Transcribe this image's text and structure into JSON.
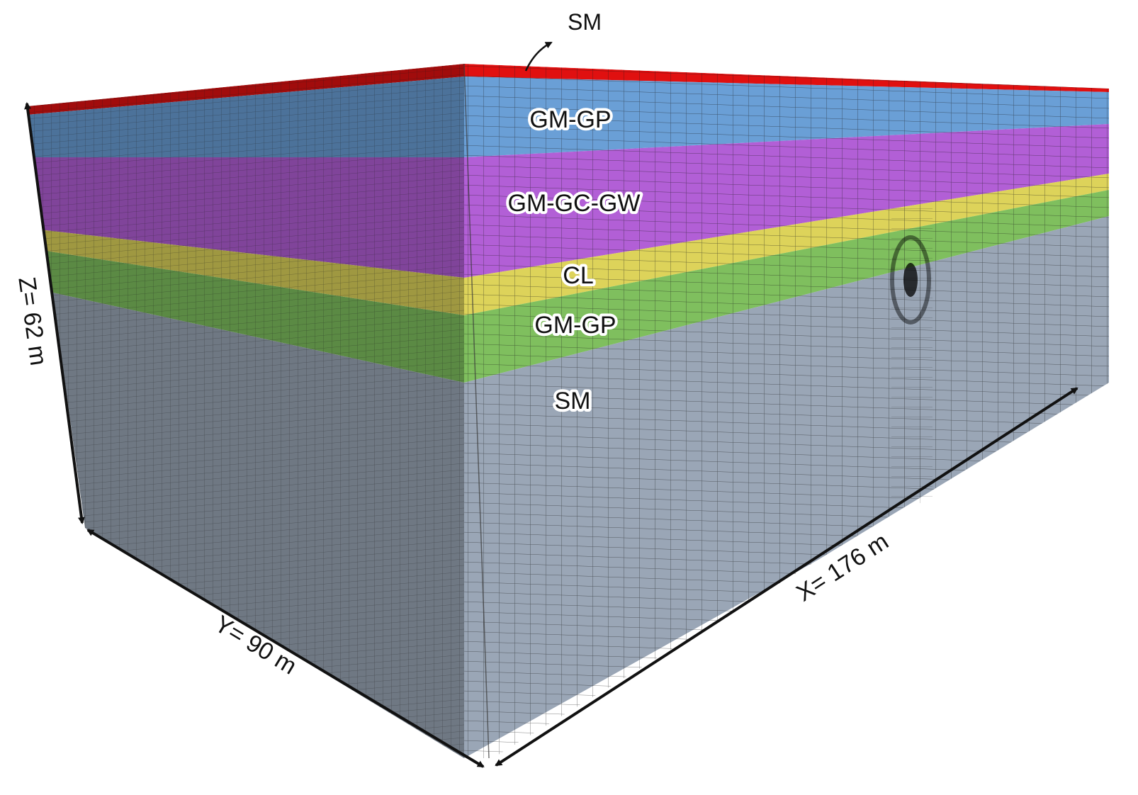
{
  "layers": [
    {
      "name": "SM",
      "color": "#e01010"
    },
    {
      "name": "GM-GP",
      "color": "#6a9fd6"
    },
    {
      "name": "GM-GC-GW",
      "color": "#b25fd6"
    },
    {
      "name": "CL",
      "color": "#ddd35a"
    },
    {
      "name": "GM-GP",
      "color": "#7fbf5e"
    },
    {
      "name": "SM",
      "color": "#9aa6b6"
    }
  ],
  "dimensions": {
    "z_label": "Z= 62 m",
    "y_label": "Y= 90 m",
    "x_label": "X= 176 m"
  }
}
